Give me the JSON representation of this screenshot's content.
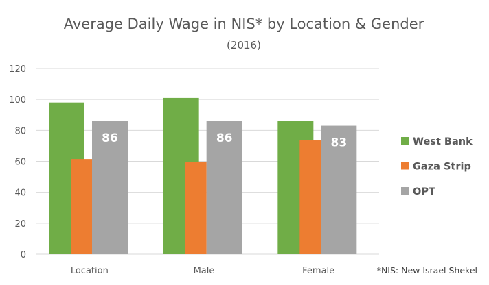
{
  "chart_data": {
    "type": "bar",
    "title": "Average Daily Wage in NIS* by Location & Gender",
    "subtitle": "(2016)",
    "categories": [
      "Location",
      "Male",
      "Female"
    ],
    "series": [
      {
        "name": "West Bank",
        "color": "#70ad47",
        "values": [
          98,
          101,
          86
        ]
      },
      {
        "name": "Gaza Strip",
        "color": "#ed7d31",
        "values": [
          61.5,
          59.5,
          73.5
        ]
      },
      {
        "name": "OPT",
        "color": "#a5a5a5",
        "values": [
          86,
          86,
          83
        ],
        "data_labels": [
          "86",
          "86",
          "83"
        ]
      }
    ],
    "ylim": [
      0,
      120
    ],
    "yticks": [
      0,
      20,
      40,
      60,
      80,
      100,
      120
    ],
    "grid": true,
    "legend": "right",
    "footnote": "*NIS: New Israel Shekel"
  }
}
